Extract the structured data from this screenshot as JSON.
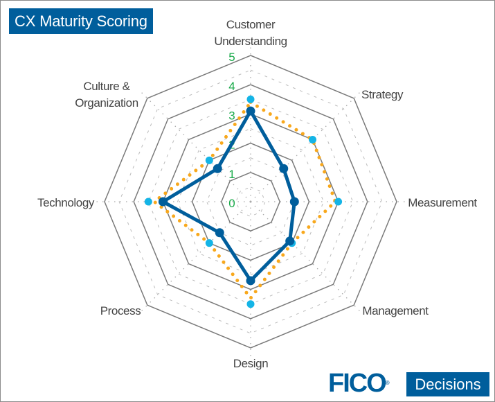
{
  "title": "CX Maturity Scoring",
  "logo": {
    "brand": "FICO",
    "registered": "®",
    "product": "Decisions"
  },
  "colors": {
    "brand": "#005e9c",
    "series_dark": "#005e9c",
    "series_light": "#14b4e6",
    "series_dotted": "#f8a81c",
    "tick_labels": "#1aaa4a",
    "grid": "#7a7a7a"
  },
  "chart_data": {
    "type": "radar",
    "title": "CX Maturity Scoring",
    "categories": [
      [
        "Customer",
        "Understanding"
      ],
      [
        "Strategy"
      ],
      [
        "Measurement"
      ],
      [
        "Management"
      ],
      [
        "Design"
      ],
      [
        "Process"
      ],
      [
        "Technology"
      ],
      [
        "Culture &",
        "Organization"
      ]
    ],
    "rlim": [
      0,
      5
    ],
    "ticks": [
      "0",
      "1",
      "2",
      "3",
      "4",
      "5"
    ],
    "grid": true,
    "legend": "none",
    "series": [
      {
        "style": "dotted-line",
        "color": "#f8a81c",
        "values": [
          3.4,
          3.0,
          2.9,
          2.0,
          3.3,
          2.0,
          3.3,
          2.0
        ]
      },
      {
        "style": "markers",
        "color": "#14b4e6",
        "values": [
          3.5,
          3.0,
          3.0,
          2.0,
          3.5,
          2.0,
          3.5,
          2.0
        ]
      },
      {
        "style": "line-markers",
        "color": "#005e9c",
        "values": [
          3.1,
          1.6,
          1.5,
          1.9,
          2.7,
          1.5,
          3.0,
          1.6
        ]
      }
    ]
  }
}
